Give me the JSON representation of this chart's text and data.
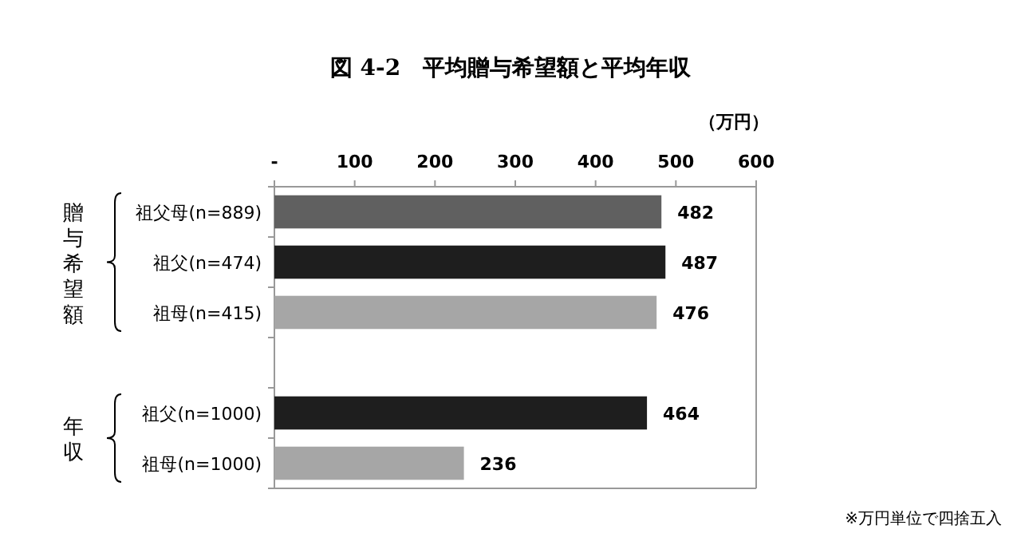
{
  "chart_data": {
    "type": "bar",
    "orientation": "horizontal",
    "title": "図 4-2　平均贈与希望額と平均年収",
    "xlabel": "（万円）",
    "categories": [
      "祖父母(n=889)",
      "祖父(n=474)",
      "祖母(n=415)",
      null,
      "祖父(n=1000)",
      "祖母(n=1000)"
    ],
    "values": [
      482,
      487,
      476,
      null,
      464,
      236
    ],
    "colors": [
      "#606060",
      "#1e1e1e",
      "#a6a6a6",
      null,
      "#1e1e1e",
      "#a6a6a6"
    ],
    "xlim": [
      0,
      600
    ],
    "xticks": [
      {
        "value": 0,
        "label": "-"
      },
      100,
      200,
      300,
      400,
      500,
      600
    ],
    "data_labels": true,
    "grid": false,
    "annotations": [
      "贈与希望額",
      "年収",
      "※万円単位で四捨五入"
    ]
  }
}
